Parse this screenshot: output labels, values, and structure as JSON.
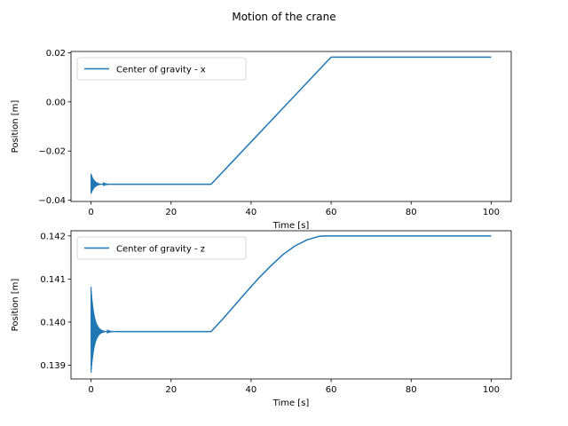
{
  "figure": {
    "title": "Motion of the crane",
    "line_color": "#1f77b4"
  },
  "chart_data": [
    {
      "type": "line",
      "xlabel": "Time [s]",
      "ylabel": "Position [m]",
      "xlim": [
        -5,
        105
      ],
      "ylim": [
        -0.0405,
        0.0205
      ],
      "xticks": [
        0,
        20,
        40,
        60,
        80,
        100
      ],
      "xtick_labels": [
        "0",
        "20",
        "40",
        "60",
        "80",
        "100"
      ],
      "yticks": [
        -0.04,
        -0.02,
        0.0,
        0.02
      ],
      "ytick_labels": [
        "−0.04",
        "−0.02",
        "0.00",
        "0.02"
      ],
      "grid": false,
      "legend": "upper left",
      "series": [
        {
          "name": "Center of gravity - x",
          "oscillation": {
            "x_start": 0,
            "x_end": 5,
            "center": -0.0335,
            "initial_top": -0.0292,
            "initial_bottom": -0.0375
          },
          "x": [
            5,
            30,
            60,
            100
          ],
          "y": [
            -0.0335,
            -0.0335,
            0.0182,
            0.0182
          ]
        }
      ]
    },
    {
      "type": "line",
      "xlabel": "Time [s]",
      "ylabel": "Position [m]",
      "xlim": [
        -5,
        105
      ],
      "ylim": [
        0.13868,
        0.14212
      ],
      "xticks": [
        0,
        20,
        40,
        60,
        80,
        100
      ],
      "xtick_labels": [
        "0",
        "20",
        "40",
        "60",
        "80",
        "100"
      ],
      "yticks": [
        0.139,
        0.14,
        0.141,
        0.142
      ],
      "ytick_labels": [
        "0.139",
        "0.140",
        "0.141",
        "0.142"
      ],
      "grid": false,
      "legend": "upper left",
      "series": [
        {
          "name": "Center of gravity - z",
          "oscillation": {
            "x_start": 0,
            "x_end": 6,
            "center": 0.13978,
            "initial_top": 0.14082,
            "initial_bottom": 0.13878
          },
          "x": [
            6,
            30,
            33,
            36,
            39,
            42,
            45,
            48,
            51,
            54,
            57,
            58.5,
            60,
            100
          ],
          "y": [
            0.13978,
            0.13978,
            0.14008,
            0.1404,
            0.14072,
            0.14103,
            0.14131,
            0.14157,
            0.14177,
            0.14191,
            0.14199,
            0.142,
            0.142,
            0.142
          ]
        }
      ]
    }
  ]
}
